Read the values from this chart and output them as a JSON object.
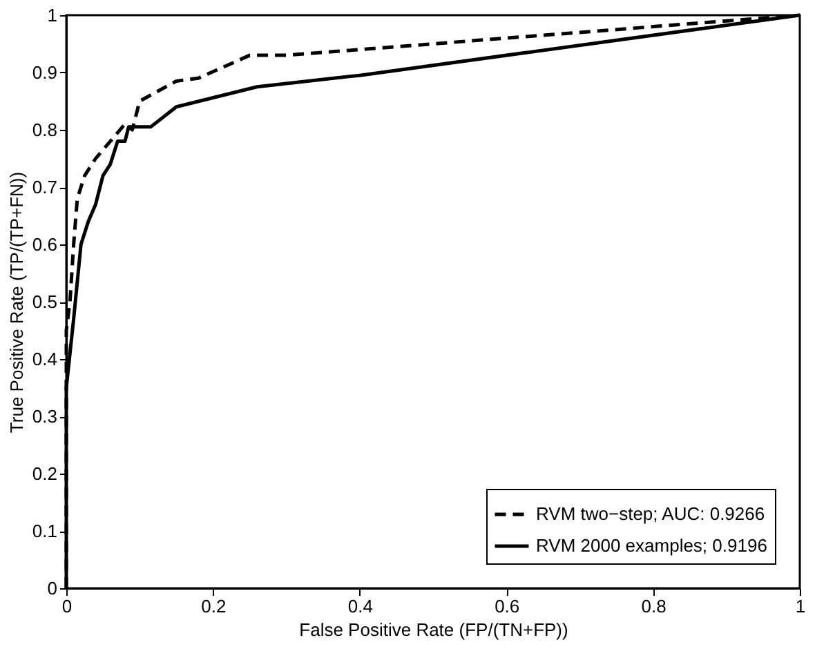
{
  "chart_data": {
    "type": "line",
    "xlabel": "False Positive Rate (FP/(TN+FP))",
    "ylabel": "True Positive Rate (TP/(TP+FN))",
    "xlim": [
      0,
      1
    ],
    "ylim": [
      0,
      1
    ],
    "xticks": [
      0,
      0.2,
      0.4,
      0.6,
      0.8,
      1
    ],
    "yticks": [
      0,
      0.1,
      0.2,
      0.3,
      0.4,
      0.5,
      0.6,
      0.7,
      0.8,
      0.9,
      1
    ],
    "grid": false,
    "legend": "bottom right",
    "series": [
      {
        "name": "RVM two−step; AUC: 0.9266",
        "color": "#000000",
        "line_style": "dashed",
        "x": [
          0,
          0,
          0.005,
          0.01,
          0.015,
          0.025,
          0.04,
          0.06,
          0.08,
          0.09,
          0.1,
          0.15,
          0.18,
          0.25,
          0.3,
          0.4,
          0.6,
          0.8,
          1
        ],
        "values": [
          0,
          0.45,
          0.5,
          0.6,
          0.68,
          0.72,
          0.75,
          0.78,
          0.81,
          0.8,
          0.85,
          0.885,
          0.89,
          0.93,
          0.93,
          0.94,
          0.96,
          0.98,
          1
        ]
      },
      {
        "name": "RVM 2000 examples; 0.9196",
        "color": "#000000",
        "line_style": "solid",
        "x": [
          0,
          0,
          0.01,
          0.02,
          0.03,
          0.04,
          0.05,
          0.06,
          0.07,
          0.08,
          0.085,
          0.115,
          0.15,
          0.26,
          0.4,
          1
        ],
        "values": [
          0,
          0.35,
          0.47,
          0.6,
          0.64,
          0.67,
          0.72,
          0.74,
          0.78,
          0.78,
          0.805,
          0.805,
          0.84,
          0.875,
          0.895,
          1
        ]
      }
    ]
  }
}
